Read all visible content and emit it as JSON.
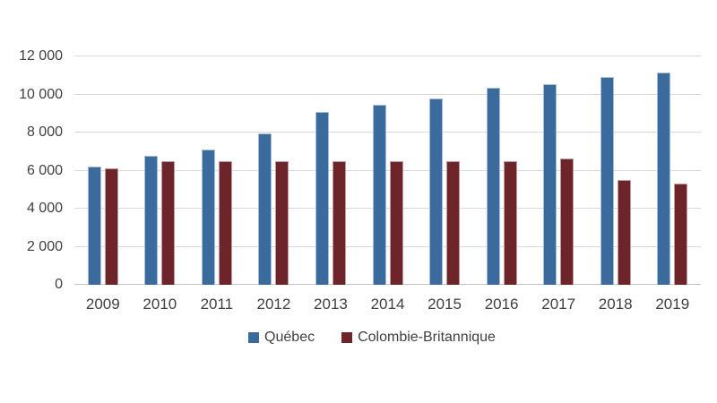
{
  "chart_data": {
    "type": "bar",
    "categories": [
      "2009",
      "2010",
      "2011",
      "2012",
      "2013",
      "2014",
      "2015",
      "2016",
      "2017",
      "2018",
      "2019"
    ],
    "series": [
      {
        "name": "Québec",
        "color": "#3a6b9c",
        "values": [
          6200,
          6800,
          7100,
          7950,
          9100,
          9450,
          9800,
          10350,
          10550,
          10900,
          11150
        ]
      },
      {
        "name": "Colombie-Britannique",
        "color": "#6e2529",
        "values": [
          6100,
          6500,
          6500,
          6500,
          6500,
          6500,
          6500,
          6500,
          6650,
          5500,
          5300
        ]
      }
    ],
    "ylim": [
      0,
      12000
    ],
    "ytick_step": 2000,
    "ytick_labels": [
      "0",
      "2 000",
      "4 000",
      "6 000",
      "8 000",
      "10 000",
      "12 000"
    ],
    "grid": true,
    "legend_position": "bottom",
    "colors": {
      "gridline": "#d9d9d9",
      "baseline": "#c3c3c3",
      "axis_label": "#404040",
      "background": "#ffffff"
    }
  }
}
